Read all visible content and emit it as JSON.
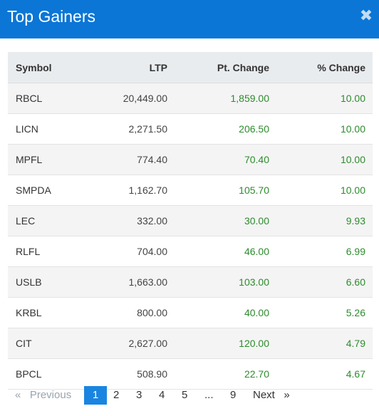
{
  "modal": {
    "title": "Top Gainers",
    "close_glyph": "✖"
  },
  "table": {
    "headers": [
      "Symbol",
      "LTP",
      "Pt. Change",
      "% Change"
    ],
    "rows": [
      {
        "symbol": "RBCL",
        "ltp": "20,449.00",
        "pt_change": "1,859.00",
        "pct_change": "10.00"
      },
      {
        "symbol": "LICN",
        "ltp": "2,271.50",
        "pt_change": "206.50",
        "pct_change": "10.00"
      },
      {
        "symbol": "MPFL",
        "ltp": "774.40",
        "pt_change": "70.40",
        "pct_change": "10.00"
      },
      {
        "symbol": "SMPDA",
        "ltp": "1,162.70",
        "pt_change": "105.70",
        "pct_change": "10.00"
      },
      {
        "symbol": "LEC",
        "ltp": "332.00",
        "pt_change": "30.00",
        "pct_change": "9.93"
      },
      {
        "symbol": "RLFL",
        "ltp": "704.00",
        "pt_change": "46.00",
        "pct_change": "6.99"
      },
      {
        "symbol": "USLB",
        "ltp": "1,663.00",
        "pt_change": "103.00",
        "pct_change": "6.60"
      },
      {
        "symbol": "KRBL",
        "ltp": "800.00",
        "pt_change": "40.00",
        "pct_change": "5.26"
      },
      {
        "symbol": "CIT",
        "ltp": "2,627.00",
        "pt_change": "120.00",
        "pct_change": "4.79"
      },
      {
        "symbol": "BPCL",
        "ltp": "508.90",
        "pt_change": "22.70",
        "pct_change": "4.67"
      }
    ]
  },
  "pagination": {
    "previous": "«   Previous",
    "pages": [
      "1",
      "2",
      "3",
      "4",
      "5"
    ],
    "active_page": "1",
    "ellipsis": "...",
    "last_page": "9",
    "next": "Next   »"
  },
  "colors": {
    "header_bg": "#0b76d6",
    "positive": "#2e8b2e",
    "active_page": "#1a85e0"
  }
}
